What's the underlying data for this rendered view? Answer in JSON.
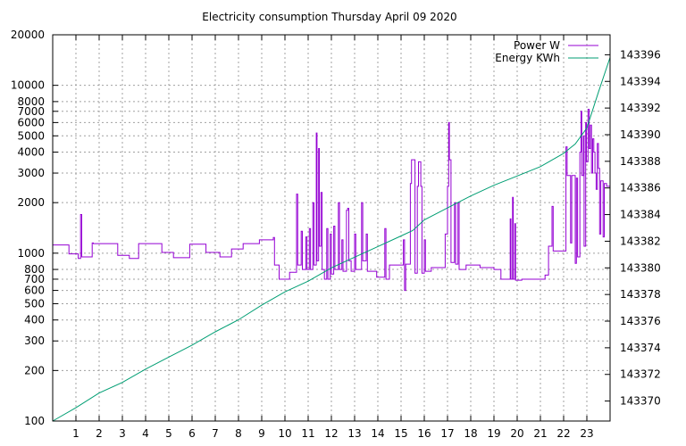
{
  "chart_data": {
    "type": "line",
    "title": "Electricity consumption Thursday April 09 2020",
    "xlabel": "",
    "ylabel": "",
    "y2label": "",
    "x_range": [
      0,
      24
    ],
    "x_ticks": [
      1,
      2,
      3,
      4,
      5,
      6,
      7,
      8,
      9,
      10,
      11,
      12,
      13,
      14,
      15,
      16,
      17,
      18,
      19,
      20,
      21,
      22,
      23
    ],
    "y_scale": "log",
    "y_range": [
      100,
      20000
    ],
    "y_ticks": [
      100,
      200,
      300,
      400,
      500,
      600,
      700,
      800,
      1000,
      2000,
      3000,
      4000,
      5000,
      6000,
      7000,
      8000,
      10000,
      20000
    ],
    "y2_range": [
      143368.5,
      143397.5
    ],
    "y2_ticks": [
      143370,
      143372,
      143374,
      143376,
      143378,
      143380,
      143382,
      143384,
      143386,
      143388,
      143390,
      143392,
      143394,
      143396
    ],
    "grid": true,
    "legend_position": "top-right",
    "series": [
      {
        "name": "Power W",
        "axis": "left",
        "color": "#9400d3",
        "style": "steps",
        "points": [
          [
            0.0,
            1120
          ],
          [
            0.7,
            1120
          ],
          [
            0.7,
            990
          ],
          [
            1.1,
            990
          ],
          [
            1.1,
            930
          ],
          [
            1.2,
            930
          ],
          [
            1.2,
            1700
          ],
          [
            1.25,
            1700
          ],
          [
            1.25,
            950
          ],
          [
            1.7,
            950
          ],
          [
            1.7,
            1150
          ],
          [
            1.75,
            1150
          ],
          [
            1.75,
            1140
          ],
          [
            2.8,
            1140
          ],
          [
            2.8,
            970
          ],
          [
            3.3,
            970
          ],
          [
            3.3,
            930
          ],
          [
            3.7,
            930
          ],
          [
            3.7,
            1140
          ],
          [
            4.7,
            1140
          ],
          [
            4.7,
            1010
          ],
          [
            5.2,
            1010
          ],
          [
            5.2,
            940
          ],
          [
            5.9,
            940
          ],
          [
            5.9,
            1130
          ],
          [
            6.6,
            1130
          ],
          [
            6.6,
            1010
          ],
          [
            7.2,
            1010
          ],
          [
            7.2,
            950
          ],
          [
            7.7,
            950
          ],
          [
            7.7,
            1060
          ],
          [
            8.2,
            1060
          ],
          [
            8.2,
            1140
          ],
          [
            8.9,
            1140
          ],
          [
            8.9,
            1200
          ],
          [
            9.5,
            1200
          ],
          [
            9.5,
            1240
          ],
          [
            9.55,
            1240
          ],
          [
            9.55,
            850
          ],
          [
            9.75,
            850
          ],
          [
            9.75,
            700
          ],
          [
            10.2,
            700
          ],
          [
            10.2,
            770
          ],
          [
            10.5,
            770
          ],
          [
            10.5,
            2250
          ],
          [
            10.55,
            2250
          ],
          [
            10.55,
            850
          ],
          [
            10.7,
            850
          ],
          [
            10.7,
            1350
          ],
          [
            10.75,
            1350
          ],
          [
            10.75,
            800
          ],
          [
            10.9,
            800
          ],
          [
            10.9,
            1250
          ],
          [
            10.95,
            1250
          ],
          [
            10.95,
            800
          ],
          [
            11.05,
            800
          ],
          [
            11.05,
            1400
          ],
          [
            11.1,
            1400
          ],
          [
            11.1,
            800
          ],
          [
            11.2,
            800
          ],
          [
            11.2,
            2000
          ],
          [
            11.25,
            2000
          ],
          [
            11.25,
            850
          ],
          [
            11.35,
            850
          ],
          [
            11.35,
            5200
          ],
          [
            11.38,
            5200
          ],
          [
            11.38,
            900
          ],
          [
            11.45,
            900
          ],
          [
            11.45,
            4200
          ],
          [
            11.48,
            4200
          ],
          [
            11.48,
            1100
          ],
          [
            11.55,
            1100
          ],
          [
            11.55,
            2300
          ],
          [
            11.6,
            2300
          ],
          [
            11.6,
            800
          ],
          [
            11.7,
            800
          ],
          [
            11.7,
            700
          ],
          [
            11.8,
            700
          ],
          [
            11.8,
            1400
          ],
          [
            11.85,
            1400
          ],
          [
            11.85,
            700
          ],
          [
            11.95,
            700
          ],
          [
            11.95,
            1300
          ],
          [
            12.0,
            1300
          ],
          [
            12.0,
            750
          ],
          [
            12.1,
            750
          ],
          [
            12.1,
            1450
          ],
          [
            12.15,
            1450
          ],
          [
            12.15,
            800
          ],
          [
            12.3,
            800
          ],
          [
            12.3,
            2000
          ],
          [
            12.35,
            2000
          ],
          [
            12.35,
            800
          ],
          [
            12.45,
            800
          ],
          [
            12.45,
            1200
          ],
          [
            12.5,
            1200
          ],
          [
            12.5,
            780
          ],
          [
            12.65,
            780
          ],
          [
            12.65,
            1800
          ],
          [
            12.7,
            1800
          ],
          [
            12.7,
            1850
          ],
          [
            12.75,
            1850
          ],
          [
            12.75,
            900
          ],
          [
            12.85,
            900
          ],
          [
            12.85,
            780
          ],
          [
            13.0,
            780
          ],
          [
            13.0,
            1300
          ],
          [
            13.05,
            1300
          ],
          [
            13.05,
            800
          ],
          [
            13.3,
            800
          ],
          [
            13.3,
            2000
          ],
          [
            13.35,
            2000
          ],
          [
            13.35,
            900
          ],
          [
            13.5,
            900
          ],
          [
            13.5,
            1300
          ],
          [
            13.55,
            1300
          ],
          [
            13.55,
            780
          ],
          [
            13.95,
            780
          ],
          [
            13.95,
            720
          ],
          [
            14.3,
            720
          ],
          [
            14.3,
            1400
          ],
          [
            14.35,
            1400
          ],
          [
            14.35,
            700
          ],
          [
            14.5,
            700
          ],
          [
            14.5,
            850
          ],
          [
            15.1,
            850
          ],
          [
            15.1,
            1200
          ],
          [
            15.15,
            1200
          ],
          [
            15.15,
            600
          ],
          [
            15.2,
            600
          ],
          [
            15.2,
            860
          ],
          [
            15.4,
            860
          ],
          [
            15.4,
            2600
          ],
          [
            15.45,
            2600
          ],
          [
            15.45,
            3600
          ],
          [
            15.6,
            3600
          ],
          [
            15.6,
            760
          ],
          [
            15.7,
            760
          ],
          [
            15.7,
            2500
          ],
          [
            15.75,
            2500
          ],
          [
            15.75,
            3500
          ],
          [
            15.85,
            3500
          ],
          [
            15.85,
            2500
          ],
          [
            15.9,
            2500
          ],
          [
            15.9,
            760
          ],
          [
            16.0,
            760
          ],
          [
            16.0,
            1200
          ],
          [
            16.05,
            1200
          ],
          [
            16.05,
            780
          ],
          [
            16.3,
            780
          ],
          [
            16.3,
            820
          ],
          [
            16.9,
            820
          ],
          [
            16.9,
            1300
          ],
          [
            17.0,
            1300
          ],
          [
            17.0,
            2500
          ],
          [
            17.05,
            2500
          ],
          [
            17.05,
            6000
          ],
          [
            17.08,
            6000
          ],
          [
            17.08,
            3600
          ],
          [
            17.15,
            3600
          ],
          [
            17.15,
            880
          ],
          [
            17.3,
            880
          ],
          [
            17.3,
            2000
          ],
          [
            17.35,
            2000
          ],
          [
            17.35,
            860
          ],
          [
            17.45,
            860
          ],
          [
            17.45,
            2000
          ],
          [
            17.5,
            2000
          ],
          [
            17.5,
            800
          ],
          [
            17.8,
            800
          ],
          [
            17.8,
            850
          ],
          [
            18.4,
            850
          ],
          [
            18.4,
            820
          ],
          [
            19.0,
            820
          ],
          [
            19.0,
            800
          ],
          [
            19.3,
            800
          ],
          [
            19.3,
            700
          ],
          [
            19.7,
            700
          ],
          [
            19.7,
            1600
          ],
          [
            19.73,
            1600
          ],
          [
            19.73,
            700
          ],
          [
            19.8,
            700
          ],
          [
            19.8,
            2150
          ],
          [
            19.83,
            2150
          ],
          [
            19.83,
            700
          ],
          [
            19.9,
            700
          ],
          [
            19.9,
            1500
          ],
          [
            19.93,
            1500
          ],
          [
            19.93,
            690
          ],
          [
            20.2,
            690
          ],
          [
            20.2,
            700
          ],
          [
            21.2,
            700
          ],
          [
            21.2,
            740
          ],
          [
            21.35,
            740
          ],
          [
            21.35,
            1100
          ],
          [
            21.5,
            1100
          ],
          [
            21.5,
            1900
          ],
          [
            21.55,
            1900
          ],
          [
            21.55,
            1030
          ],
          [
            22.1,
            1030
          ],
          [
            22.1,
            4300
          ],
          [
            22.15,
            4300
          ],
          [
            22.15,
            2900
          ],
          [
            22.3,
            2900
          ],
          [
            22.3,
            1150
          ],
          [
            22.35,
            1150
          ],
          [
            22.35,
            2900
          ],
          [
            22.5,
            2900
          ],
          [
            22.5,
            870
          ],
          [
            22.55,
            870
          ],
          [
            22.55,
            2800
          ],
          [
            22.6,
            2800
          ],
          [
            22.6,
            950
          ],
          [
            22.7,
            950
          ],
          [
            22.7,
            4000
          ],
          [
            22.75,
            4000
          ],
          [
            22.75,
            7000
          ],
          [
            22.78,
            7000
          ],
          [
            22.78,
            2900
          ],
          [
            22.85,
            2900
          ],
          [
            22.85,
            5000
          ],
          [
            22.88,
            5000
          ],
          [
            22.88,
            1100
          ],
          [
            22.95,
            1100
          ],
          [
            22.95,
            6000
          ],
          [
            22.98,
            6000
          ],
          [
            22.98,
            3500
          ],
          [
            23.05,
            3500
          ],
          [
            23.05,
            7200
          ],
          [
            23.1,
            7200
          ],
          [
            23.1,
            4200
          ],
          [
            23.15,
            4200
          ],
          [
            23.15,
            5800
          ],
          [
            23.2,
            5800
          ],
          [
            23.2,
            3000
          ],
          [
            23.25,
            3000
          ],
          [
            23.25,
            4800
          ],
          [
            23.3,
            4800
          ],
          [
            23.3,
            4000
          ],
          [
            23.35,
            4000
          ],
          [
            23.35,
            3000
          ],
          [
            23.4,
            3000
          ],
          [
            23.4,
            2400
          ],
          [
            23.45,
            2400
          ],
          [
            23.45,
            4500
          ],
          [
            23.5,
            4500
          ],
          [
            23.5,
            3200
          ],
          [
            23.55,
            3200
          ],
          [
            23.55,
            1300
          ],
          [
            23.6,
            1300
          ],
          [
            23.6,
            2700
          ],
          [
            23.7,
            2700
          ],
          [
            23.7,
            1250
          ],
          [
            23.75,
            1250
          ],
          [
            23.75,
            2600
          ],
          [
            23.85,
            2600
          ],
          [
            23.85,
            2500
          ],
          [
            24.0,
            2500
          ]
        ]
      },
      {
        "name": "Energy KWh",
        "axis": "right",
        "color": "#009e73",
        "style": "line",
        "points": [
          [
            0.0,
            143368.5
          ],
          [
            1.0,
            143369.5
          ],
          [
            2.0,
            143370.6
          ],
          [
            3.0,
            143371.4
          ],
          [
            4.0,
            143372.4
          ],
          [
            5.0,
            143373.3
          ],
          [
            6.0,
            143374.2
          ],
          [
            7.0,
            143375.2
          ],
          [
            8.0,
            143376.1
          ],
          [
            9.0,
            143377.2
          ],
          [
            10.0,
            143378.2
          ],
          [
            11.0,
            143379.0
          ],
          [
            12.0,
            143380.0
          ],
          [
            13.0,
            143380.8
          ],
          [
            14.0,
            143381.6
          ],
          [
            15.0,
            143382.4
          ],
          [
            15.5,
            143382.8
          ],
          [
            16.0,
            143383.6
          ],
          [
            17.0,
            143384.5
          ],
          [
            18.0,
            143385.4
          ],
          [
            19.0,
            143386.2
          ],
          [
            20.0,
            143386.9
          ],
          [
            21.0,
            143387.6
          ],
          [
            22.0,
            143388.6
          ],
          [
            22.5,
            143389.3
          ],
          [
            23.0,
            143390.5
          ],
          [
            23.5,
            143393.2
          ],
          [
            24.0,
            143395.8
          ]
        ]
      }
    ]
  }
}
